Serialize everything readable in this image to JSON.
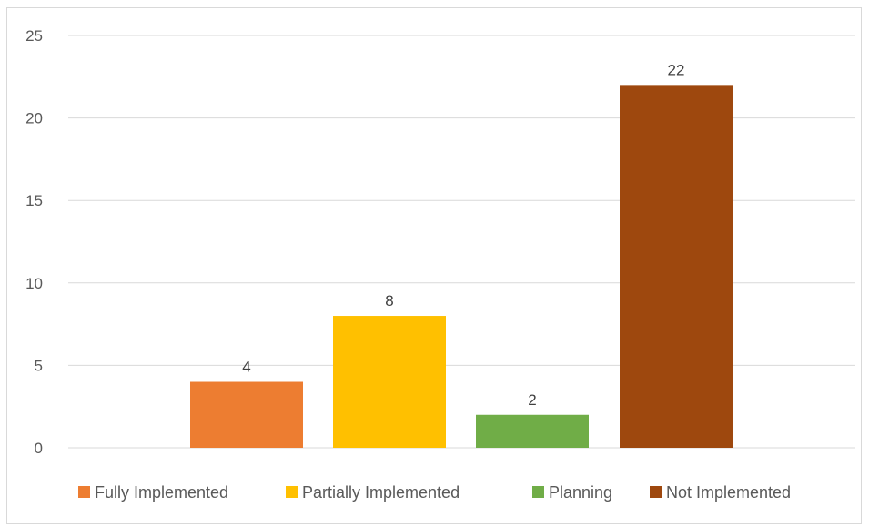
{
  "chart_data": {
    "type": "bar",
    "categories": [
      "Fully Implemented",
      "Partially Implemented",
      "Planning",
      "Not Implemented"
    ],
    "values": [
      4,
      8,
      2,
      22
    ],
    "colors": [
      "#ed7d31",
      "#ffc000",
      "#70ad47",
      "#9e480e"
    ],
    "title": "",
    "xlabel": "",
    "ylabel": "",
    "ylim": [
      0,
      25
    ],
    "yticks": [
      "0",
      "5",
      "10",
      "15",
      "20",
      "25"
    ],
    "data_labels": [
      "4",
      "8",
      "2",
      "22"
    ],
    "grid": true,
    "legend_position": "bottom",
    "legend": [
      {
        "label": "Fully Implemented",
        "color": "#ed7d31"
      },
      {
        "label": "Partially Implemented",
        "color": "#ffc000"
      },
      {
        "label": "Planning",
        "color": "#70ad47"
      },
      {
        "label": "Not Implemented",
        "color": "#9e480e"
      }
    ]
  }
}
